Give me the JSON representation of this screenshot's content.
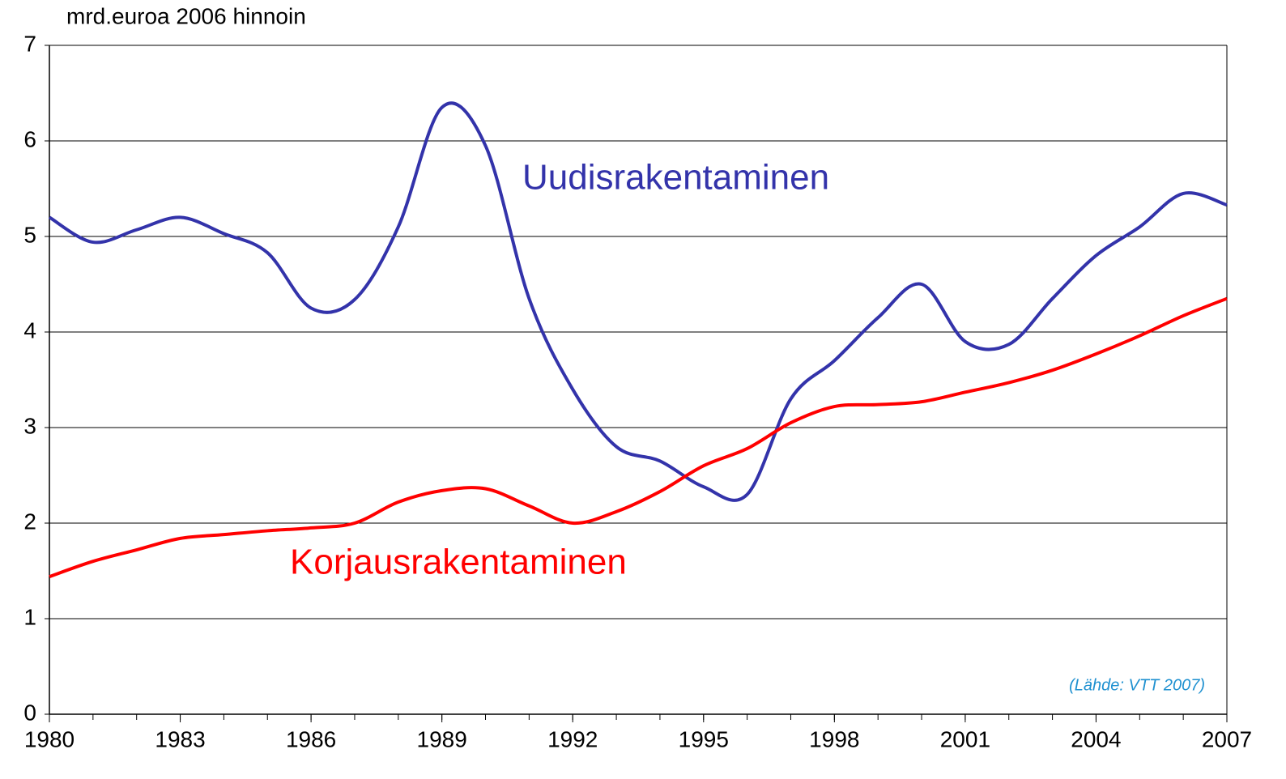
{
  "chart_data": {
    "type": "line",
    "y_axis_label": "mrd.euroa 2006 hinnoin",
    "source": "(Lähde: VTT 2007)",
    "x": [
      1980,
      1981,
      1982,
      1983,
      1984,
      1985,
      1986,
      1987,
      1988,
      1989,
      1990,
      1991,
      1992,
      1993,
      1994,
      1995,
      1996,
      1997,
      1998,
      1999,
      2000,
      2001,
      2002,
      2003,
      2004,
      2005,
      2006,
      2007
    ],
    "series": [
      {
        "name": "Uudisrakentaminen",
        "color": "#3333aa",
        "values": [
          5.2,
          4.94,
          5.07,
          5.2,
          5.03,
          4.83,
          4.25,
          4.34,
          5.1,
          6.35,
          5.95,
          4.35,
          3.4,
          2.8,
          2.65,
          2.38,
          2.3,
          3.3,
          3.7,
          4.15,
          4.5,
          3.9,
          3.87,
          4.35,
          4.8,
          5.1,
          5.45,
          5.33
        ]
      },
      {
        "name": "Korjausrakentaminen",
        "color": "#ff0000",
        "values": [
          1.44,
          1.6,
          1.72,
          1.84,
          1.88,
          1.92,
          1.95,
          2.0,
          2.22,
          2.34,
          2.36,
          2.18,
          2.0,
          2.12,
          2.33,
          2.6,
          2.78,
          3.05,
          3.22,
          3.24,
          3.27,
          3.37,
          3.47,
          3.6,
          3.77,
          3.96,
          4.17,
          4.35
        ]
      }
    ],
    "xlim": [
      1980,
      2007
    ],
    "xticks": [
      1980,
      1983,
      1986,
      1989,
      1992,
      1995,
      1998,
      2001,
      2004,
      2007
    ],
    "ylim": [
      0,
      7
    ],
    "yticks": [
      0,
      1,
      2,
      3,
      4,
      5,
      6,
      7
    ],
    "grid": true
  }
}
